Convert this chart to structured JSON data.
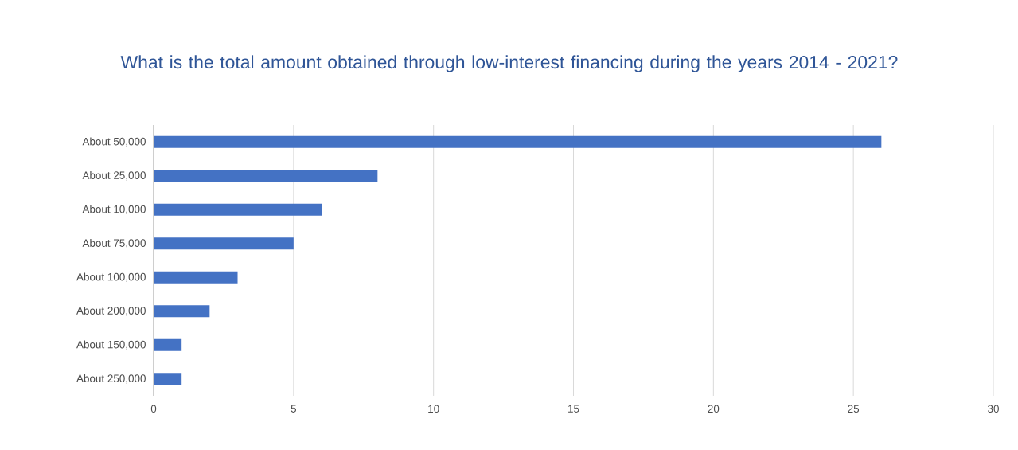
{
  "chart_data": {
    "type": "bar",
    "orientation": "horizontal",
    "title": "What is the total amount obtained through low-interest financing during the years 2014 - 2021?",
    "categories": [
      "About 50,000",
      "About 25,000",
      "About 10,000",
      "About 75,000",
      "About 100,000",
      "About 200,000",
      "About 150,000",
      "About 250,000"
    ],
    "values": [
      26,
      8,
      6,
      5,
      3,
      2,
      1,
      1
    ],
    "color": "#4472c4",
    "xlim": [
      0,
      30
    ],
    "xticks": [
      0,
      5,
      10,
      15,
      20,
      25,
      30
    ],
    "grid": "x"
  }
}
